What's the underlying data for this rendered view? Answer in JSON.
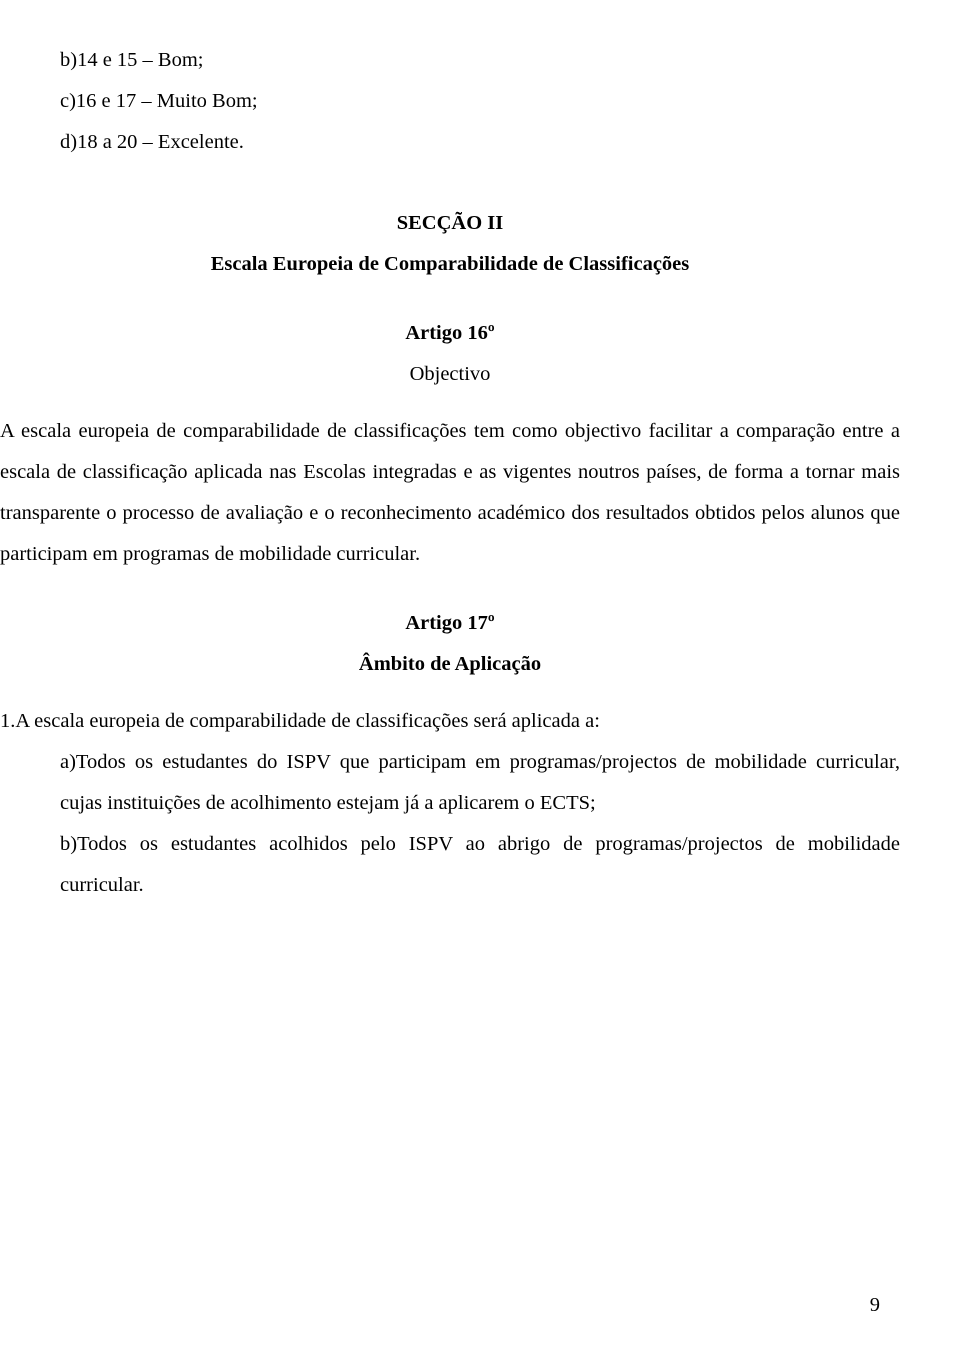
{
  "listItems": {
    "b": "b)14 e 15 – Bom;",
    "c": "c)16 e 17 – Muito Bom;",
    "d": "d)18 a 20 – Excelente."
  },
  "section2": {
    "header": "SECÇÃO II",
    "subtitle": "Escala Europeia de Comparabilidade de Classificações"
  },
  "article16": {
    "header": "Artigo 16º",
    "title": "Objectivo",
    "paragraph": "A escala europeia de comparabilidade de classificações tem como objectivo facilitar a comparação entre a escala de classificação aplicada nas Escolas integradas e as vigentes noutros países, de forma a tornar mais transparente o processo de avaliação e o reconhecimento académico dos resultados obtidos pelos alunos que participam em programas de mobilidade curricular."
  },
  "article17": {
    "header": "Artigo 17º",
    "title": "Âmbito de Aplicação",
    "intro": "1.A escala europeia de comparabilidade de classificações será aplicada a:",
    "itemA": "a)Todos os estudantes do ISPV que participam em programas/projectos de mobilidade curricular, cujas instituições de acolhimento estejam já a aplicarem o ECTS;",
    "itemB": "b)Todos os estudantes acolhidos pelo ISPV ao abrigo de programas/projectos de mobilidade curricular."
  },
  "pageNumber": "9"
}
